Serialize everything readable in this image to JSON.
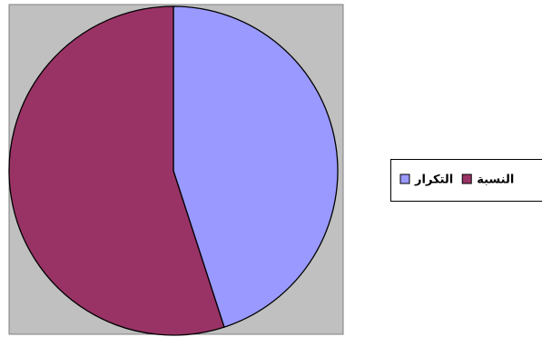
{
  "chart_data": {
    "type": "pie",
    "categories": [
      "التكرار",
      "النسبة"
    ],
    "values": [
      45,
      55
    ],
    "colors": [
      "#9999ff",
      "#993366"
    ],
    "legend": "right"
  }
}
